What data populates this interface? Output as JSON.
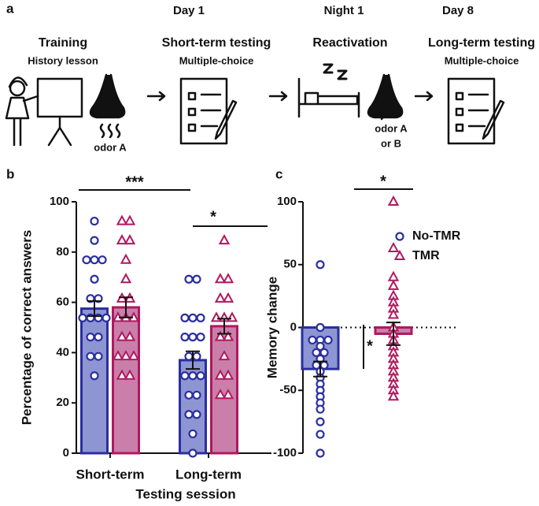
{
  "panel_a": {
    "label": "a",
    "days": [
      "Day 1",
      "Night 1",
      "Day 8"
    ],
    "steps": [
      {
        "title": "Training",
        "subtitle": "History lesson"
      },
      {
        "title": "Short-term testing",
        "subtitle": "Multiple-choice"
      },
      {
        "title": "Reactivation"
      },
      {
        "title": "Long-term testing",
        "subtitle": "Multiple-choice"
      }
    ],
    "odors": [
      [
        "odor A"
      ],
      [
        "odor A",
        "or B"
      ]
    ]
  },
  "chart_data": [
    {
      "type": "bar",
      "panel": "b",
      "y_label": "Percentage of correct answers",
      "x_label": "Testing session",
      "categories": [
        "Short-term",
        "Long-term"
      ],
      "ylim": [
        0,
        100
      ],
      "yticks": [
        0,
        20,
        40,
        60,
        80,
        100
      ],
      "series": [
        {
          "color": "#2b2f9e",
          "fill": "#8e95d3",
          "marker": "circle",
          "values": [
            57.5,
            37
          ],
          "errors": [
            3,
            3.5
          ],
          "points": [
            [
              92.3,
              84.6,
              76.9,
              76.9,
              76.9,
              69.2,
              61.5,
              61.5,
              53.8,
              53.8,
              53.8,
              53.8,
              46.2,
              46.2,
              38.5,
              38.5,
              30.8
            ],
            [
              69.2,
              69.2,
              53.8,
              53.8,
              53.8,
              46.2,
              46.2,
              46.2,
              38.5,
              38.5,
              30.8,
              30.8,
              30.8,
              23.1,
              23.1,
              15.4,
              15.4,
              7.7,
              0
            ]
          ]
        },
        {
          "color": "#b0185f",
          "fill": "#c97fa9",
          "marker": "triangle",
          "values": [
            58,
            50.5
          ],
          "errors": [
            4,
            3
          ],
          "points": [
            [
              92.3,
              92.3,
              84.6,
              84.6,
              76.9,
              69.2,
              61.5,
              61.5,
              53.8,
              53.8,
              53.8,
              46.2,
              46.2,
              38.5,
              38.5,
              38.5,
              30.8,
              30.8
            ],
            [
              84.6,
              69.2,
              69.2,
              61.5,
              61.5,
              53.8,
              53.8,
              53.8,
              46.2,
              46.2,
              38.5,
              30.8,
              30.8,
              23.1,
              23.1
            ]
          ]
        }
      ],
      "annotations": [
        {
          "text": "***"
        },
        {
          "text": "*"
        }
      ]
    },
    {
      "type": "bar",
      "panel": "c",
      "y_label": "Memory change",
      "ylim": [
        -100,
        100
      ],
      "yticks": [
        -100,
        -50,
        0,
        50,
        100
      ],
      "hline": 0,
      "legend": "right",
      "series": [
        {
          "name": "No-TMR",
          "color": "#2b2f9e",
          "fill": "#8e95d3",
          "marker": "circle",
          "values": [
            -33
          ],
          "errors": [
            6
          ],
          "points": [
            [
              50,
              0,
              -10,
              -10,
              -10,
              -15,
              -20,
              -20,
              -25,
              -30,
              -30,
              -35,
              -40,
              -45,
              -50,
              -55,
              -60,
              -65,
              -75,
              -85,
              -100
            ]
          ]
        },
        {
          "name": "TMR",
          "color": "#b0185f",
          "fill": "#c97fa9",
          "marker": "triangle",
          "values": [
            -5
          ],
          "errors": [
            9
          ],
          "points": [
            [
              100,
              63,
              40,
              33,
              25,
              20,
              15,
              10,
              0,
              -5,
              -10,
              -15,
              -20,
              -25,
              -30,
              -35,
              -40,
              -45,
              -50,
              -55
            ]
          ]
        }
      ],
      "annotations": [
        {
          "text": "*"
        },
        {
          "text": "*"
        }
      ]
    }
  ]
}
